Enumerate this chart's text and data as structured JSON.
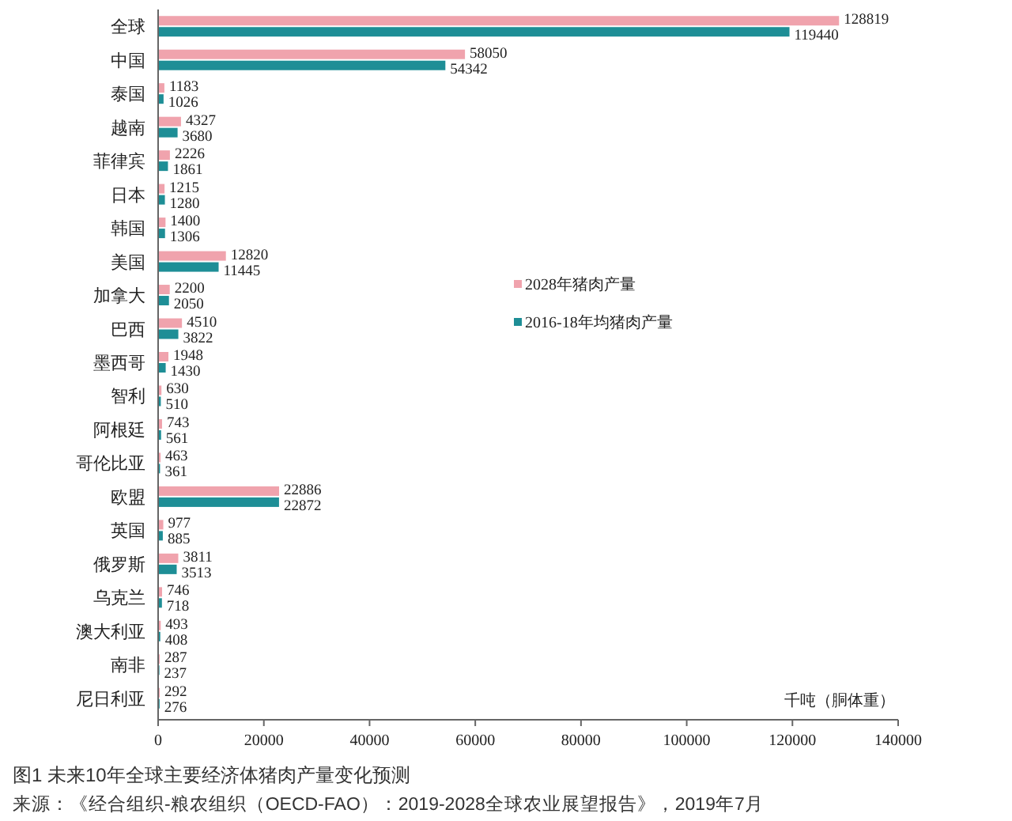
{
  "chart_data": {
    "type": "bar",
    "orientation": "horizontal",
    "title": "图1 未来10年全球主要经济体猪肉产量变化预测",
    "categories": [
      "全球",
      "中国",
      "泰国",
      "越南",
      "菲律宾",
      "日本",
      "韩国",
      "美国",
      "加拿大",
      "巴西",
      "墨西哥",
      "智利",
      "阿根廷",
      "哥伦比亚",
      "欧盟",
      "英国",
      "俄罗斯",
      "乌克兰",
      "澳大利亚",
      "南非",
      "尼日利亚"
    ],
    "series": [
      {
        "name": "2028年猪肉产量",
        "color": "#f0a3ad",
        "values": [
          128819,
          58050,
          1183,
          4327,
          2226,
          1215,
          1400,
          12820,
          2200,
          4510,
          1948,
          630,
          743,
          463,
          22886,
          977,
          3811,
          746,
          493,
          287,
          292
        ]
      },
      {
        "name": "2016-18年均猪肉产量",
        "color": "#1e8e96",
        "values": [
          119440,
          54342,
          1026,
          3680,
          1861,
          1280,
          1306,
          11445,
          2050,
          3822,
          1430,
          510,
          561,
          361,
          22872,
          885,
          3513,
          718,
          408,
          237,
          276
        ]
      }
    ],
    "xlim": [
      0,
      140000
    ],
    "xticks": [
      0,
      20000,
      40000,
      60000,
      80000,
      100000,
      120000,
      140000
    ],
    "data_labels": true,
    "legend": "right",
    "annotations": [
      "千吨（胴体重）",
      "来源：《经合组织-粮农组织（OECD-FAO）：2019-2028全球农业展望报告》，2019年7月"
    ]
  }
}
